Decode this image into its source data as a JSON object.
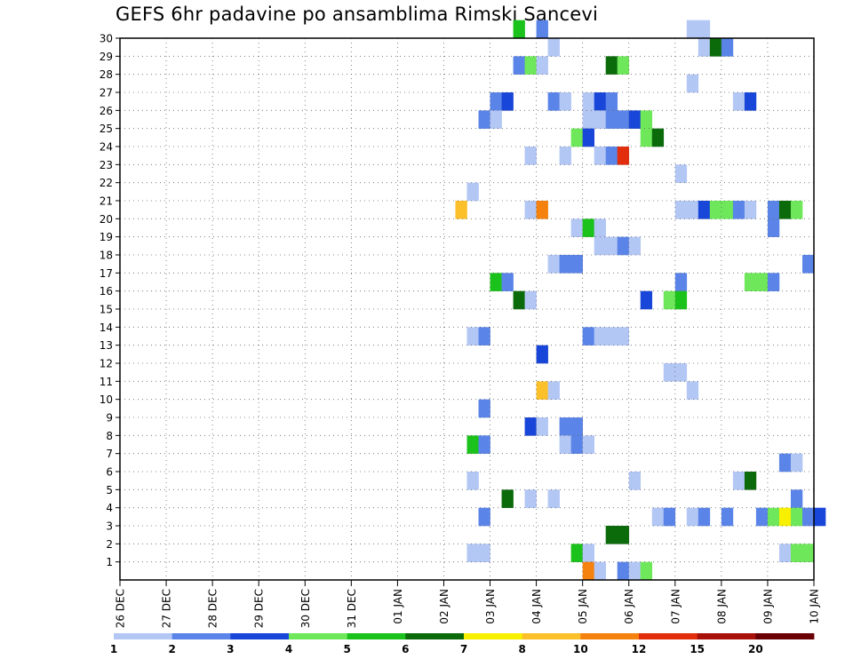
{
  "chart_data": {
    "type": "heatmap",
    "title": "GEFS 6hr padavine po ansamblima Rimski Sancevi",
    "xlabel": "",
    "ylabel": "",
    "x_ticks": [
      "26 DEC",
      "27 DEC",
      "28 DEC",
      "29 DEC",
      "30 DEC",
      "31 DEC",
      "01 JAN",
      "02 JAN",
      "03 JAN",
      "04 JAN",
      "05 JAN",
      "06 JAN",
      "07 JAN",
      "08 JAN",
      "09 JAN",
      "10 JAN"
    ],
    "x_range": [
      "26 DEC 00Z",
      "10 JAN 00Z"
    ],
    "steps_per_day": 4,
    "y_ticks": [
      1,
      2,
      3,
      4,
      5,
      6,
      7,
      8,
      9,
      10,
      11,
      12,
      13,
      14,
      15,
      16,
      17,
      18,
      19,
      20,
      21,
      22,
      23,
      24,
      25,
      26,
      27,
      28,
      29,
      30
    ],
    "y_range": [
      0,
      30
    ],
    "grid": true,
    "legend": {
      "placement": "bottom",
      "labels": [
        "1",
        "2",
        "3",
        "4",
        "5",
        "6",
        "7",
        "8",
        "10",
        "12",
        "15",
        "20"
      ],
      "colors": [
        "#b3c7f5",
        "#5a84e8",
        "#1846d8",
        "#6ee85a",
        "#1cc21c",
        "#0b6b0b",
        "#f7f000",
        "#fbc02a",
        "#f5820e",
        "#e22e0c",
        "#a8100a",
        "#6a0006"
      ]
    },
    "cells": [
      [
        30,
        34,
        4
      ],
      [
        30,
        36,
        1
      ],
      [
        30,
        49,
        0
      ],
      [
        30,
        50,
        0
      ],
      [
        29,
        37,
        0
      ],
      [
        29,
        50,
        0
      ],
      [
        29,
        51,
        5
      ],
      [
        29,
        52,
        1
      ],
      [
        28,
        34,
        1
      ],
      [
        28,
        35,
        3
      ],
      [
        28,
        36,
        0
      ],
      [
        28,
        42,
        5
      ],
      [
        28,
        43,
        3
      ],
      [
        27,
        49,
        0
      ],
      [
        26,
        32,
        1
      ],
      [
        26,
        33,
        2
      ],
      [
        26,
        37,
        1
      ],
      [
        26,
        38,
        0
      ],
      [
        26,
        40,
        0
      ],
      [
        26,
        41,
        2
      ],
      [
        26,
        42,
        1
      ],
      [
        26,
        53,
        0
      ],
      [
        26,
        54,
        2
      ],
      [
        25,
        31,
        1
      ],
      [
        25,
        32,
        0
      ],
      [
        25,
        40,
        0
      ],
      [
        25,
        41,
        0
      ],
      [
        25,
        42,
        1
      ],
      [
        25,
        43,
        1
      ],
      [
        25,
        44,
        2
      ],
      [
        25,
        45,
        3
      ],
      [
        24,
        39,
        3
      ],
      [
        24,
        40,
        2
      ],
      [
        24,
        45,
        3
      ],
      [
        24,
        46,
        5
      ],
      [
        23,
        35,
        0
      ],
      [
        23,
        38,
        0
      ],
      [
        23,
        41,
        0
      ],
      [
        23,
        42,
        1
      ],
      [
        23,
        43,
        9
      ],
      [
        22,
        48,
        0
      ],
      [
        21,
        30,
        0
      ],
      [
        20,
        29,
        7
      ],
      [
        20,
        35,
        0
      ],
      [
        20,
        36,
        8
      ],
      [
        20,
        48,
        0
      ],
      [
        20,
        49,
        0
      ],
      [
        20,
        50,
        2
      ],
      [
        20,
        51,
        3
      ],
      [
        20,
        52,
        3
      ],
      [
        20,
        53,
        1
      ],
      [
        20,
        54,
        0
      ],
      [
        20,
        56,
        1
      ],
      [
        20,
        57,
        5
      ],
      [
        20,
        58,
        3
      ],
      [
        19,
        39,
        0
      ],
      [
        19,
        40,
        4
      ],
      [
        19,
        41,
        0
      ],
      [
        19,
        56,
        1
      ],
      [
        18,
        41,
        0
      ],
      [
        18,
        42,
        0
      ],
      [
        18,
        43,
        1
      ],
      [
        18,
        44,
        0
      ],
      [
        17,
        37,
        0
      ],
      [
        17,
        38,
        1
      ],
      [
        17,
        39,
        1
      ],
      [
        17,
        59,
        1
      ],
      [
        16,
        32,
        4
      ],
      [
        16,
        33,
        1
      ],
      [
        16,
        48,
        1
      ],
      [
        16,
        54,
        3
      ],
      [
        16,
        55,
        3
      ],
      [
        16,
        56,
        1
      ],
      [
        15,
        34,
        5
      ],
      [
        15,
        35,
        0
      ],
      [
        15,
        45,
        2
      ],
      [
        15,
        47,
        3
      ],
      [
        15,
        48,
        4
      ],
      [
        13,
        30,
        0
      ],
      [
        13,
        31,
        1
      ],
      [
        13,
        40,
        1
      ],
      [
        13,
        41,
        0
      ],
      [
        13,
        42,
        0
      ],
      [
        13,
        43,
        0
      ],
      [
        12,
        36,
        2
      ],
      [
        11,
        47,
        0
      ],
      [
        11,
        48,
        0
      ],
      [
        10,
        36,
        7
      ],
      [
        10,
        37,
        0
      ],
      [
        10,
        49,
        0
      ],
      [
        9,
        31,
        1
      ],
      [
        8,
        35,
        2
      ],
      [
        8,
        36,
        0
      ],
      [
        8,
        38,
        1
      ],
      [
        8,
        39,
        1
      ],
      [
        7,
        30,
        4
      ],
      [
        7,
        31,
        1
      ],
      [
        7,
        38,
        0
      ],
      [
        7,
        39,
        1
      ],
      [
        7,
        40,
        0
      ],
      [
        6,
        57,
        1
      ],
      [
        6,
        58,
        0
      ],
      [
        5,
        30,
        0
      ],
      [
        5,
        44,
        0
      ],
      [
        5,
        53,
        0
      ],
      [
        5,
        54,
        5
      ],
      [
        4,
        33,
        5
      ],
      [
        4,
        35,
        0
      ],
      [
        4,
        37,
        0
      ],
      [
        4,
        58,
        1
      ],
      [
        3,
        31,
        1
      ],
      [
        3,
        46,
        0
      ],
      [
        3,
        47,
        1
      ],
      [
        3,
        49,
        0
      ],
      [
        3,
        50,
        1
      ],
      [
        3,
        52,
        1
      ],
      [
        3,
        55,
        1
      ],
      [
        3,
        56,
        3
      ],
      [
        3,
        57,
        6
      ],
      [
        3,
        58,
        3
      ],
      [
        3,
        59,
        1
      ],
      [
        3,
        60,
        2
      ],
      [
        2,
        42,
        5
      ],
      [
        2,
        43,
        5
      ],
      [
        1,
        30,
        0
      ],
      [
        1,
        31,
        0
      ],
      [
        1,
        39,
        4
      ],
      [
        1,
        40,
        0
      ],
      [
        1,
        57,
        0
      ],
      [
        1,
        58,
        3
      ],
      [
        1,
        59,
        3
      ],
      [
        0,
        40,
        8
      ],
      [
        0,
        41,
        0
      ],
      [
        0,
        43,
        1
      ],
      [
        0,
        44,
        0
      ],
      [
        0,
        45,
        3
      ]
    ]
  }
}
